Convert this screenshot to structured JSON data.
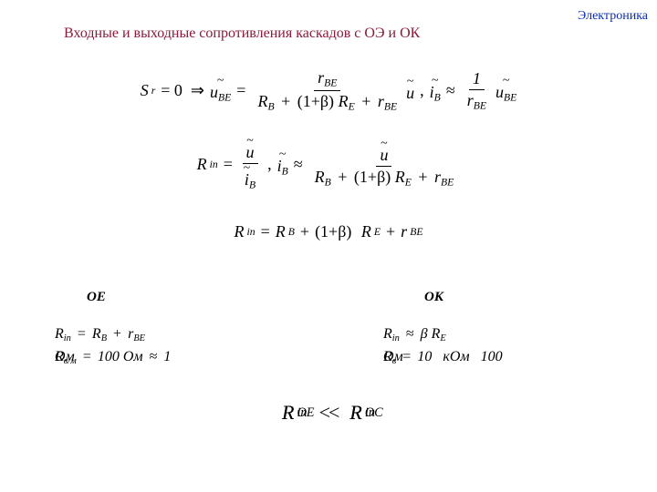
{
  "colors": {
    "header": "#0b2db0",
    "title": "#8a1a3a",
    "text": "#000000",
    "background": "#ffffff"
  },
  "header": "Электроника",
  "title": "Входные и выходные сопротивления каскадов с ОЭ и ОК",
  "labels": {
    "oe": "ОЕ",
    "ok": "ОК"
  },
  "eq1": {
    "lhs1": "S",
    "sub_r": "r",
    "eq0": "= 0",
    "uBE": "u",
    "sub_BE": "BE",
    "rBE_num": "r",
    "rBE_sub": "BE",
    "RB": "R",
    "RB_sub": "B",
    "beta_term": "(1+β)",
    "RE": "R",
    "RE_sub": "E",
    "plus_rBE": "r",
    "plus_rBE_sub": "BE",
    "u": "u",
    "iB": "i",
    "iB_sub": "B",
    "one": "1"
  },
  "eq2": {
    "Rin": "R",
    "Rin_sub": "in",
    "u": "u",
    "iB": "i",
    "iB_sub": "B",
    "RB": "R",
    "RB_sub": "B",
    "beta_term": "(1+β)",
    "RE": "R",
    "RE_sub": "E",
    "rBE": "r",
    "rBE_sub": "BE"
  },
  "eq3": {
    "Rin": "R",
    "Rin_sub": "in",
    "RB": "R",
    "RB_sub": "B",
    "beta_term": "(1+β)",
    "RE": "R",
    "RE_sub": "E",
    "rBE": "r",
    "rBE_sub": "BE"
  },
  "oe": {
    "line1_a": "R",
    "line1_a_sub": "in",
    "line1_b": "R",
    "line1_b_sub": "B",
    "line1_c": "r",
    "line1_c_sub": "BE",
    "line2_stack_a": "R",
    "line2_stack_b": "Ом",
    "line2_num1": "100",
    "line2_num2": "Ом",
    "line2_num3": "1"
  },
  "ok": {
    "line1_a": "R",
    "line1_a_sub": "in",
    "line1_b": "β R",
    "line1_b_sub": "E",
    "line2_stack_a": "R",
    "line2_stack_b": "Ом",
    "line2_num1": "10",
    "line2_num2": "кОм",
    "line2_num3": "100"
  },
  "final": {
    "R": "R",
    "sub_left_a": "in",
    "sub_left_b": "ОЕ",
    "sub_right_a": "in",
    "sub_right_b": "ОC"
  }
}
